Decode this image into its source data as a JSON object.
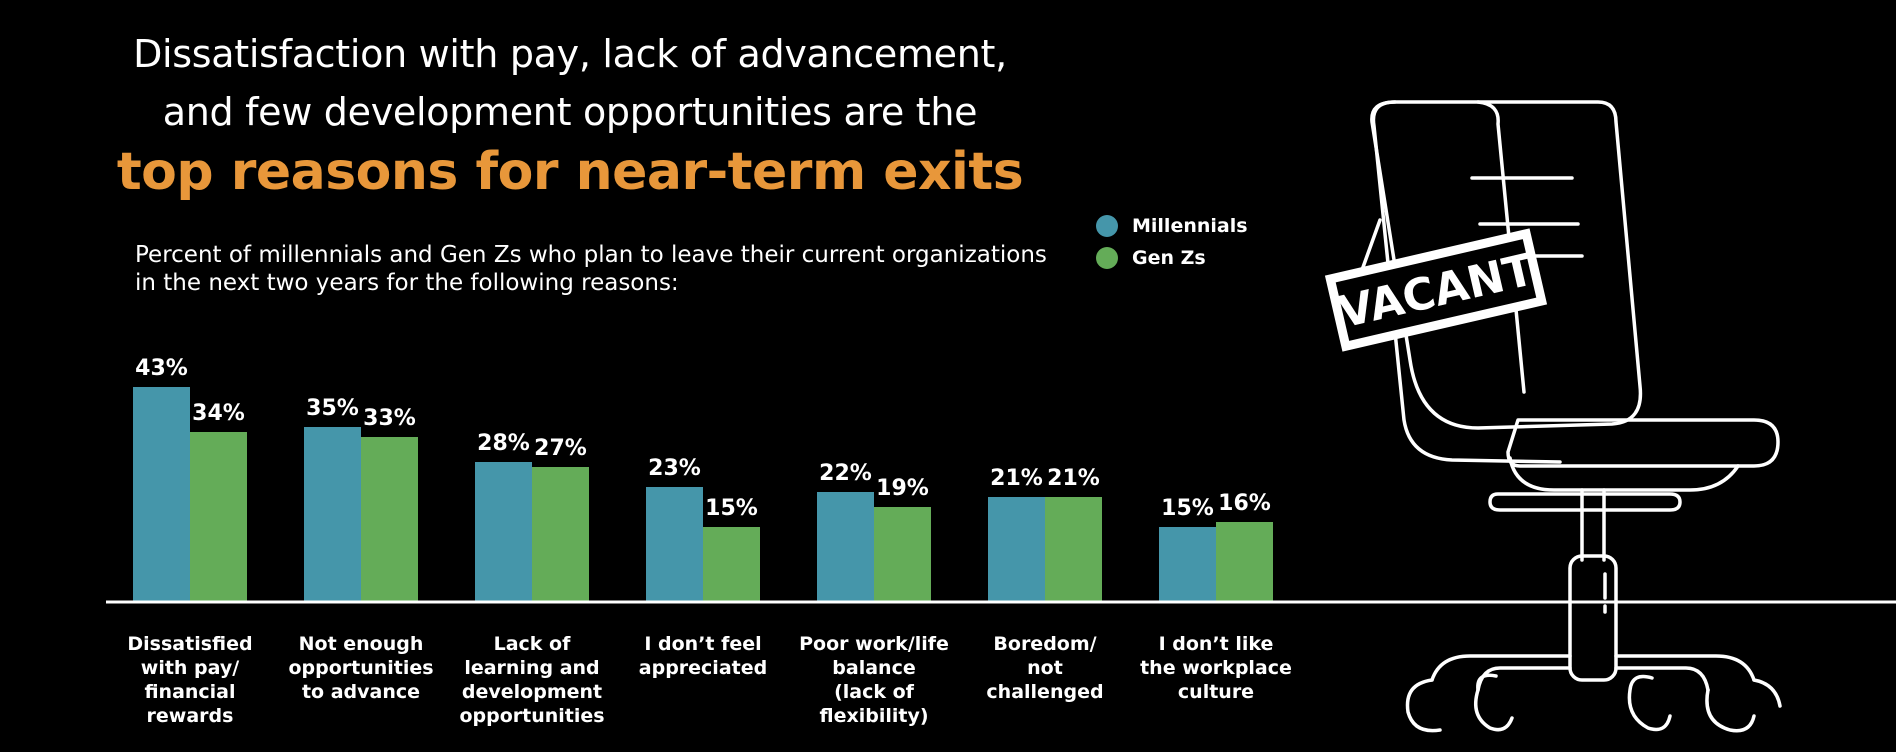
{
  "title": {
    "line1": "Dissatisfaction with pay, lack of advancement,",
    "line2": "and few development opportunities are the",
    "highlight": "top reasons for near-term exits"
  },
  "subtitle": {
    "line1": "Percent of millennials and Gen Zs who plan to leave their current organizations",
    "line2": "in the next two years for the following reasons:"
  },
  "colors": {
    "millennials": "#4596AA",
    "genz": "#64AC58",
    "highlight": "#E8973A"
  },
  "illustration": {
    "sign_text": "VACANT"
  },
  "chart_data": {
    "type": "bar",
    "categories": [
      "Dissatisfied\nwith pay/\nfinancial\nrewards",
      "Not enough\nopportunities\nto advance",
      "Lack of\nlearning and\ndevelopment\nopportunities",
      "I don’t feel\nappreciated",
      "Poor work/life\nbalance\n(lack of\nflexibility)",
      "Boredom/\nnot\nchallenged",
      "I don’t like\nthe workplace\nculture"
    ],
    "series": [
      {
        "name": "Millennials",
        "values": [
          43,
          35,
          28,
          23,
          22,
          21,
          15
        ]
      },
      {
        "name": "Gen Zs",
        "values": [
          34,
          33,
          27,
          15,
          19,
          21,
          16
        ]
      }
    ],
    "value_suffix": "%",
    "ylim": [
      0,
      43
    ],
    "grid": false,
    "legend_position": "top-right"
  }
}
